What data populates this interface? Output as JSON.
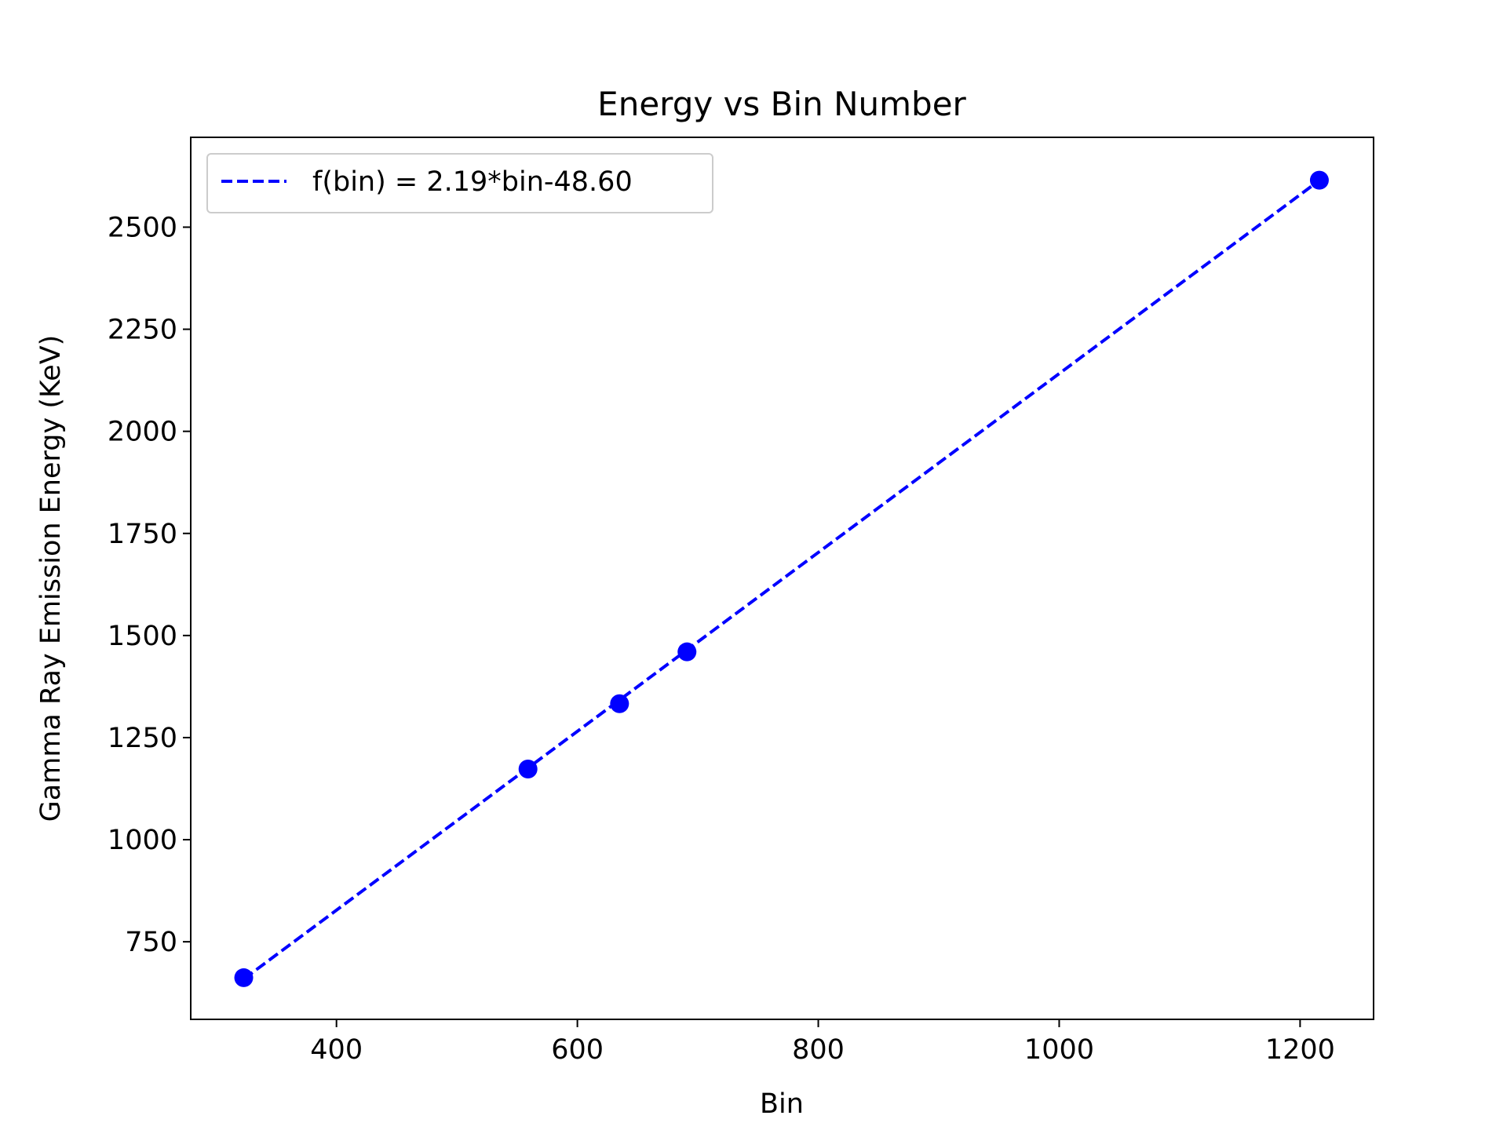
{
  "chart_data": {
    "type": "scatter",
    "title": "Energy vs Bin Number",
    "xlabel": "Bin",
    "ylabel": "Gamma Ray Emission Energy (KeV)",
    "xlim": [
      279,
      1261
    ],
    "ylim": [
      560,
      2720
    ],
    "xticks": [
      400,
      600,
      800,
      1000,
      1200
    ],
    "yticks": [
      750,
      1000,
      1250,
      1500,
      1750,
      2000,
      2250,
      2500
    ],
    "grid": false,
    "legend_position": "top-left",
    "points": {
      "x": [
        323,
        559,
        635,
        691,
        1216
      ],
      "y": [
        662,
        1173,
        1333,
        1460,
        2615
      ]
    },
    "fit": {
      "label": "f(bin) = 2.19*bin-48.60",
      "slope": 2.19,
      "intercept": -48.6,
      "x_range": [
        323,
        1216
      ]
    },
    "colors": {
      "series": "#0000ff",
      "axes": "#000000",
      "legend_border": "#cccccc"
    }
  }
}
